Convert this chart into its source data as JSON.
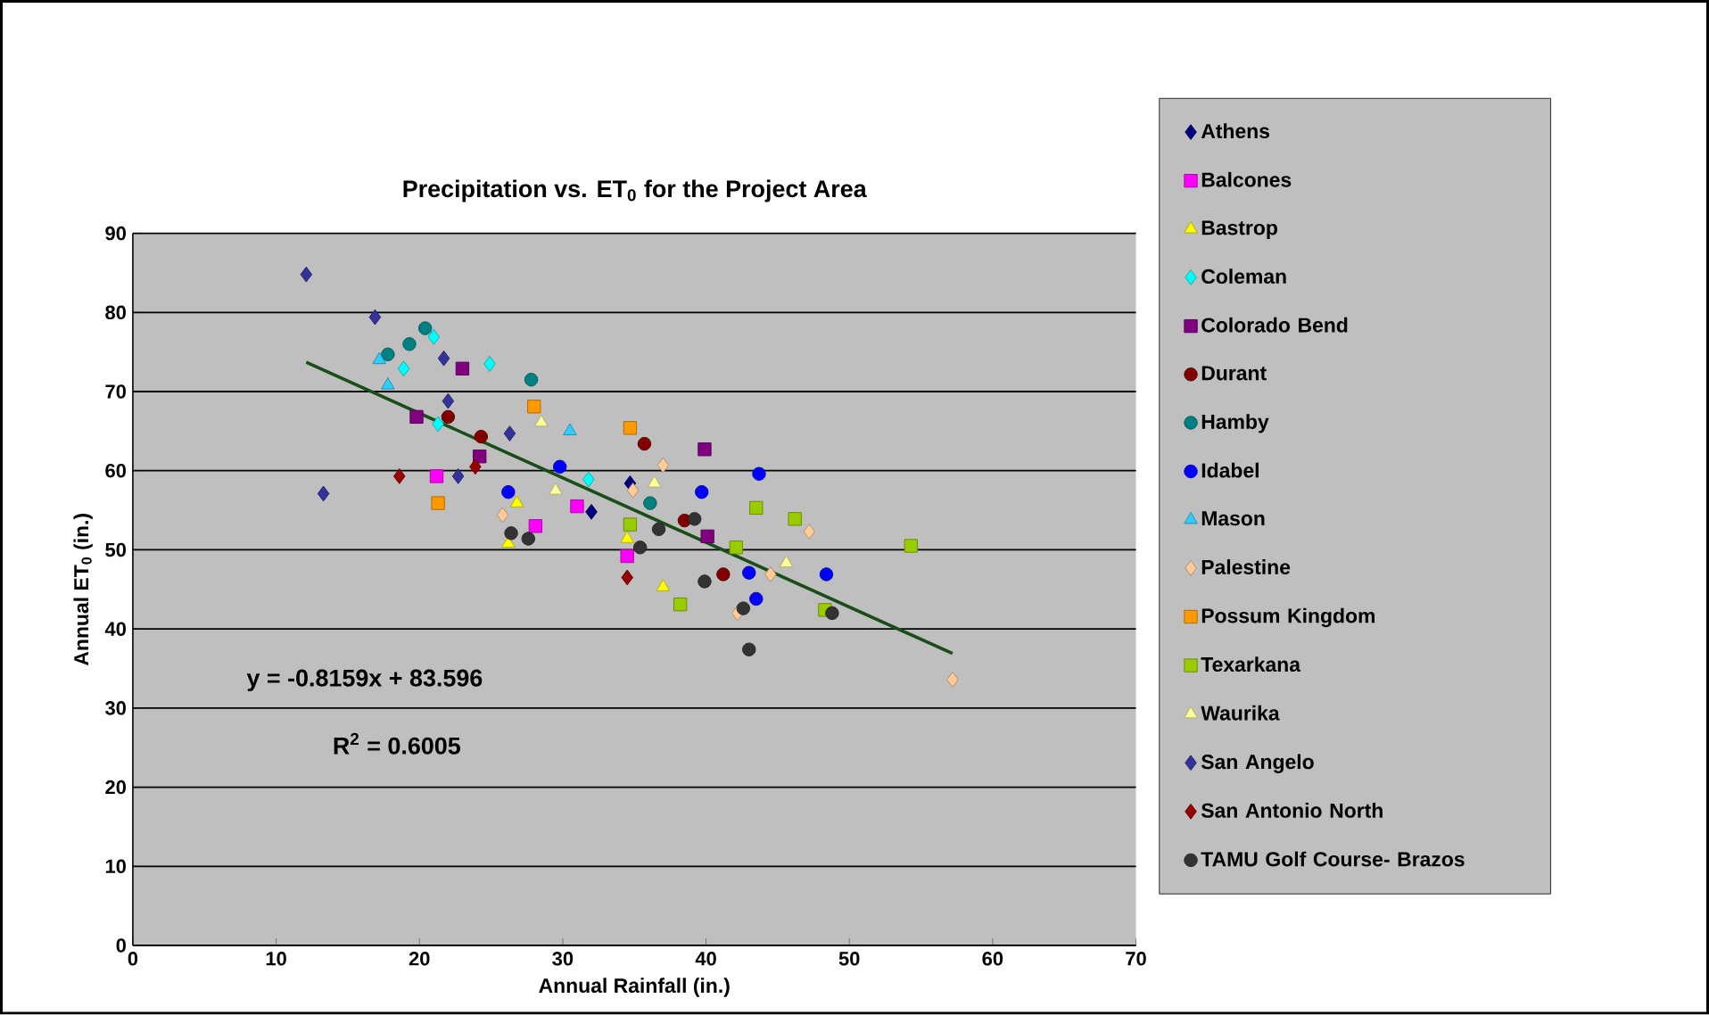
{
  "chart_data": {
    "type": "scatter",
    "title": "Precipitation vs. ET$_{0}$ for the Project Area",
    "xlabel": "Annual Rainfall (in.)",
    "ylabel": "Annual ET$_{0}$ (in.)",
    "xlim": [
      0,
      70
    ],
    "ylim": [
      0,
      90
    ],
    "xticks": [
      0,
      10,
      20,
      30,
      40,
      50,
      60,
      70
    ],
    "yticks": [
      0,
      10,
      20,
      30,
      40,
      50,
      60,
      70,
      80,
      90
    ],
    "grid": "y",
    "legend": "right",
    "annotations": [
      "y = -0.8159x + 83.596",
      "R$^{2}$ = 0.6005"
    ],
    "series": [
      {
        "name": "Athens",
        "color": "#000080",
        "marker": "diamond",
        "x": [
          32.0,
          34.7
        ],
        "values": [
          54.8,
          58.4
        ]
      },
      {
        "name": "Balcones",
        "color": "#ff00ff",
        "marker": "square",
        "x": [
          21.2,
          28.1,
          31.0,
          34.5
        ],
        "values": [
          59.3,
          53.0,
          55.5,
          49.2
        ]
      },
      {
        "name": "Bastrop",
        "color": "#ffff00",
        "marker": "triangle",
        "x": [
          26.8,
          34.5,
          37.0,
          26.2
        ],
        "values": [
          55.9,
          51.4,
          45.3,
          50.8
        ]
      },
      {
        "name": "Coleman",
        "color": "#00ffff",
        "marker": "diamond",
        "x": [
          21.0,
          18.9,
          24.9,
          21.3,
          31.8
        ],
        "values": [
          76.9,
          72.9,
          73.5,
          65.9,
          58.9
        ]
      },
      {
        "name": "Colorado Bend",
        "color": "#800080",
        "marker": "square",
        "x": [
          23.0,
          19.8,
          24.2,
          39.9,
          40.1
        ],
        "values": [
          72.9,
          66.8,
          61.8,
          62.7,
          51.7
        ]
      },
      {
        "name": "Durant",
        "color": "#800000",
        "marker": "circle",
        "x": [
          22.0,
          24.3,
          35.7,
          38.5,
          41.2
        ],
        "values": [
          66.8,
          64.3,
          63.4,
          53.7,
          46.9
        ]
      },
      {
        "name": "Hamby",
        "color": "#008080",
        "marker": "circle",
        "x": [
          20.4,
          19.3,
          17.8,
          27.8,
          36.1
        ],
        "values": [
          78.0,
          76.0,
          74.7,
          71.5,
          55.9
        ]
      },
      {
        "name": "Idabel",
        "color": "#0000ff",
        "marker": "circle",
        "x": [
          29.8,
          39.7,
          43.7,
          43.0,
          48.4,
          43.5,
          26.2
        ],
        "values": [
          60.5,
          57.3,
          59.6,
          47.1,
          46.9,
          43.8,
          57.3
        ]
      },
      {
        "name": "Mason",
        "color": "#33ccff",
        "marker": "triangle",
        "x": [
          17.2,
          17.8,
          30.5
        ],
        "values": [
          74.0,
          70.8,
          65.0
        ]
      },
      {
        "name": "Palestine",
        "color": "#ffcc99",
        "marker": "diamond",
        "x": [
          37.0,
          34.9,
          47.2,
          44.5,
          42.2,
          57.2,
          25.8
        ],
        "values": [
          60.7,
          57.5,
          52.3,
          46.9,
          42.0,
          33.6,
          54.4
        ]
      },
      {
        "name": "Possum Kingdom",
        "color": "#ff9900",
        "marker": "square",
        "x": [
          28.0,
          21.3,
          34.7
        ],
        "values": [
          68.1,
          55.9,
          65.4
        ]
      },
      {
        "name": "Texarkana",
        "color": "#99cc00",
        "marker": "square",
        "x": [
          43.5,
          46.2,
          34.7,
          42.1,
          38.2,
          48.3,
          54.3
        ],
        "values": [
          55.3,
          53.9,
          53.2,
          50.3,
          43.1,
          42.4,
          50.5
        ]
      },
      {
        "name": "Waurika",
        "color": "#ffff99",
        "marker": "triangle",
        "x": [
          28.5,
          29.5,
          36.4,
          45.6
        ],
        "values": [
          66.1,
          57.5,
          58.4,
          48.3
        ]
      },
      {
        "name": "San Angelo",
        "color": "#333399",
        "marker": "diamond",
        "x": [
          12.1,
          13.3,
          16.9,
          21.7,
          22.0,
          22.7,
          26.3
        ],
        "values": [
          84.8,
          57.1,
          79.4,
          74.2,
          68.8,
          59.3,
          64.7
        ]
      },
      {
        "name": "San Antonio North",
        "color": "#990000",
        "marker": "diamond",
        "x": [
          18.6,
          23.9,
          34.5
        ],
        "values": [
          59.3,
          60.5,
          46.5
        ]
      },
      {
        "name": "TAMU Golf Course- Brazos",
        "color": "#333333",
        "marker": "circle",
        "x": [
          26.4,
          27.6,
          36.7,
          35.4,
          39.2,
          39.9,
          42.6,
          43.0,
          48.8
        ],
        "values": [
          52.1,
          51.4,
          52.6,
          50.3,
          53.9,
          46.0,
          42.6,
          37.4,
          42.0
        ]
      },
      {
        "type": "line",
        "color": "#1a4d1a",
        "line_style": "solid",
        "marker": "none",
        "x": [
          12.1,
          57.2
        ],
        "values": [
          73.7,
          36.9
        ]
      }
    ]
  }
}
